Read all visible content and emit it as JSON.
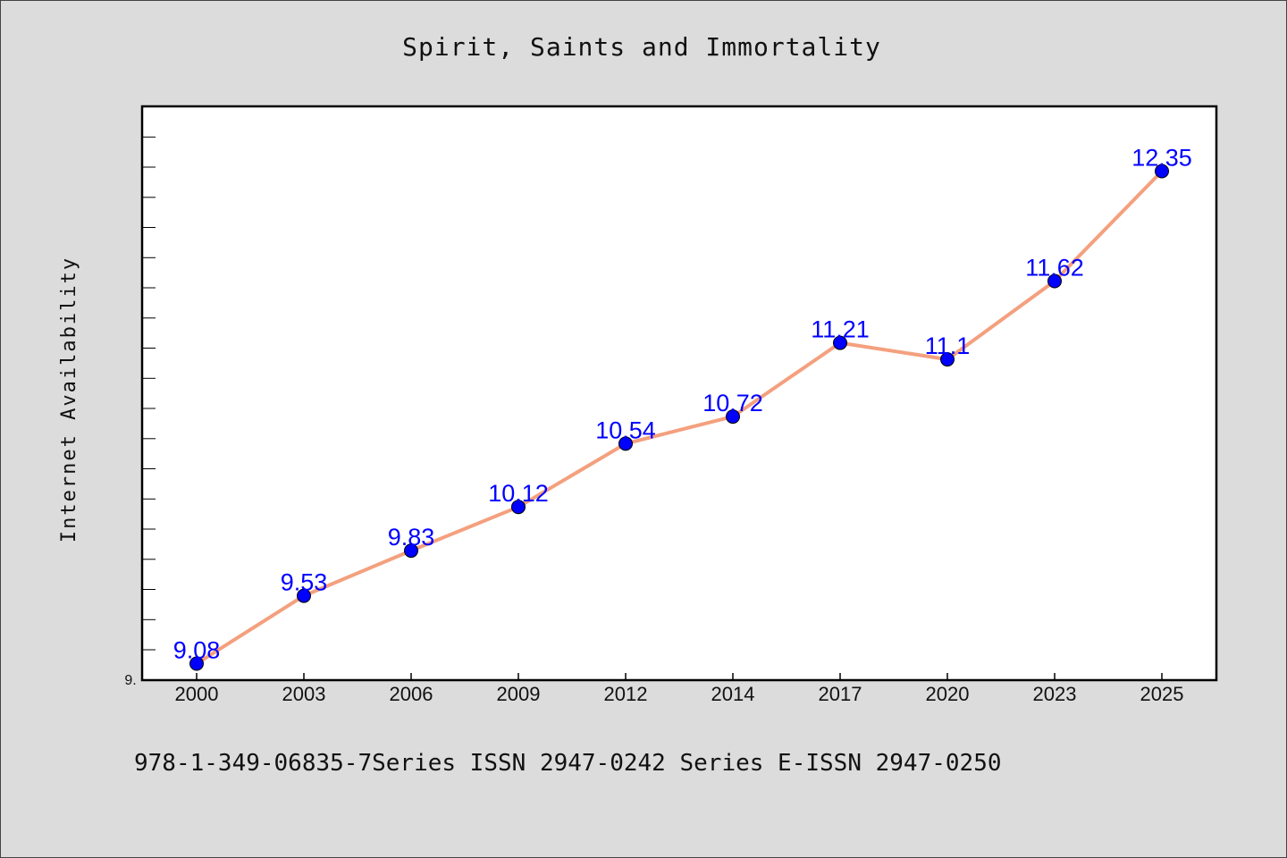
{
  "chart_data": {
    "type": "line",
    "title": "Spirit, Saints and Immortality",
    "xlabel": "",
    "ylabel": "Internet Availability",
    "categories": [
      "2000",
      "2003",
      "2006",
      "2009",
      "2012",
      "2014",
      "2017",
      "2020",
      "2023",
      "2025"
    ],
    "series": [
      {
        "values": [
          9.08,
          9.53,
          9.83,
          10.12,
          10.54,
          10.72,
          11.21,
          11.1,
          11.62,
          12.35
        ],
        "data_labels": [
          "9.08",
          "9.53",
          "9.83",
          "10.12",
          "10.54",
          "10.72",
          "11.21",
          "11.1",
          "11.62",
          "12.35"
        ]
      }
    ],
    "ylim": [
      8.97,
      12.78
    ],
    "y_tick_label": "9.",
    "grid": false,
    "legend": "none"
  },
  "caption": "978-1-349-06835-7Series ISSN 2947-0242 Series E-ISSN 2947-0250",
  "colors": {
    "background": "#dcdcdc",
    "plot_background": "#ffffff",
    "line": "#f4a07e",
    "marker": "#0000ff",
    "data_label": "#0000ff"
  }
}
